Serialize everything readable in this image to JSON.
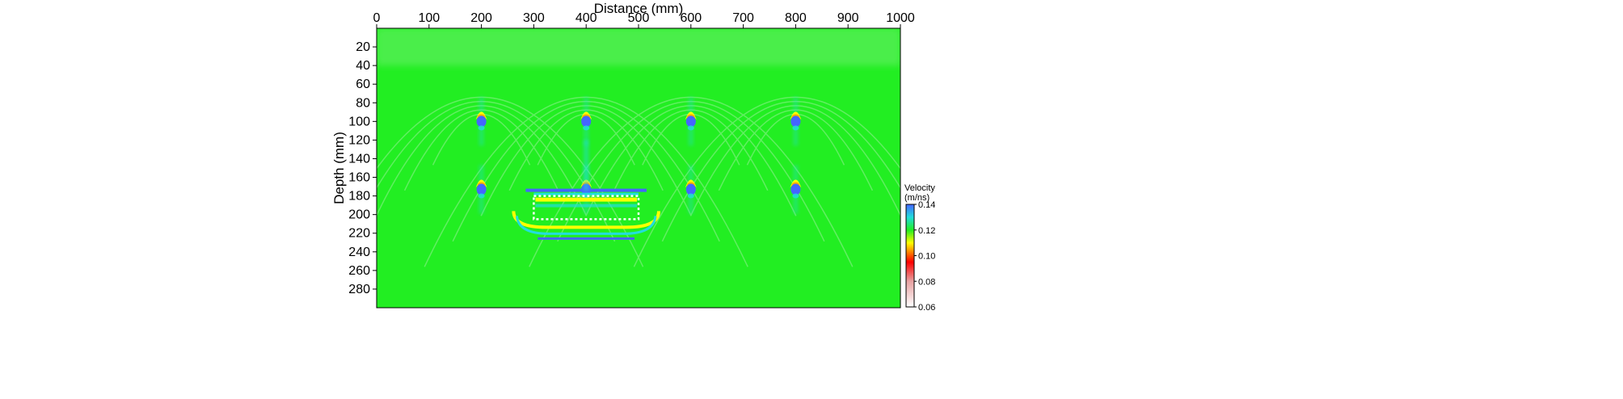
{
  "chart_data": {
    "type": "heatmap",
    "xlabel": "Distance (mm)",
    "ylabel": "Depth (mm)",
    "x_axis_position": "top",
    "xlim": [
      0,
      1000
    ],
    "ylim": [
      0,
      300
    ],
    "y_inverted": true,
    "x_ticks": [
      0,
      100,
      200,
      300,
      400,
      500,
      600,
      700,
      800,
      900,
      1000
    ],
    "y_ticks": [
      20,
      40,
      60,
      80,
      100,
      120,
      140,
      160,
      180,
      200,
      220,
      240,
      260,
      280
    ],
    "background_velocity": 0.12,
    "colorbar": {
      "title_line1": "Velocity",
      "title_line2": "(m/ns)",
      "min": 0.06,
      "max": 0.14,
      "ticks": [
        "0.14",
        "0.12",
        "0.10",
        "0.08",
        "0.06"
      ],
      "tick_values": [
        0.14,
        0.12,
        0.1,
        0.08,
        0.06
      ],
      "stops": [
        {
          "value": 0.06,
          "color": "#ffffff"
        },
        {
          "value": 0.08,
          "color": "#e8a2a2"
        },
        {
          "value": 0.095,
          "color": "#ff0000"
        },
        {
          "value": 0.11,
          "color": "#ffff00"
        },
        {
          "value": 0.12,
          "color": "#22ee22"
        },
        {
          "value": 0.13,
          "color": "#22dddd"
        },
        {
          "value": 0.14,
          "color": "#4466ff"
        }
      ],
      "position": "right"
    },
    "anomalies": [
      {
        "x": 200,
        "depth": 100
      },
      {
        "x": 400,
        "depth": 100
      },
      {
        "x": 600,
        "depth": 100
      },
      {
        "x": 800,
        "depth": 100
      },
      {
        "x": 200,
        "depth": 173
      },
      {
        "x": 400,
        "depth": 173
      },
      {
        "x": 600,
        "depth": 173
      },
      {
        "x": 800,
        "depth": 173
      }
    ],
    "rectangle_target": {
      "x_range": [
        300,
        500
      ],
      "depth_range": [
        180,
        205
      ]
    },
    "grid": false,
    "legend": "none"
  }
}
